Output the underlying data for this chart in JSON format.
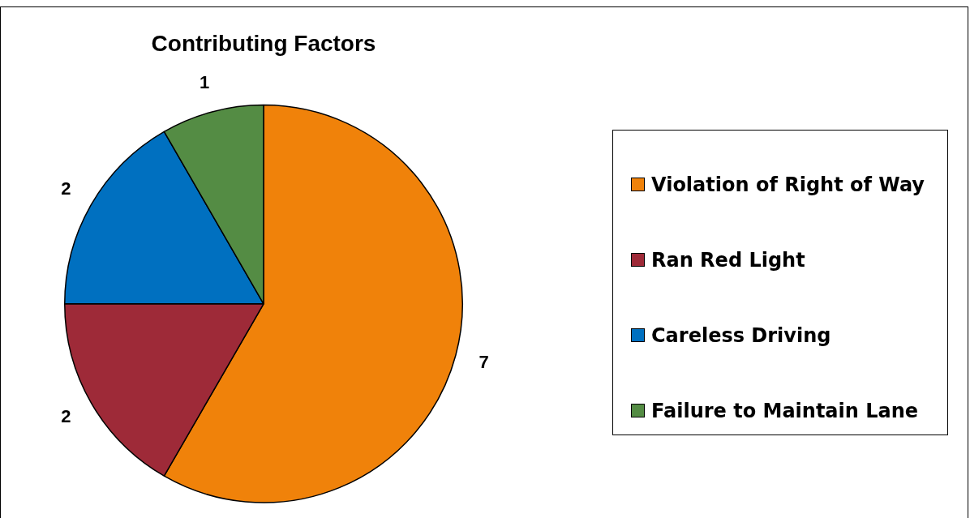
{
  "chart_data": {
    "type": "pie",
    "title": "Contributing Factors",
    "categories": [
      "Violation of Right of Way",
      "Ran Red Light",
      "Careless Driving",
      "Failure to Maintain Lane"
    ],
    "values": [
      7,
      2,
      2,
      1
    ],
    "colors": [
      "#f0820a",
      "#9e2a38",
      "#0070c0",
      "#548c44"
    ],
    "data_labels": true,
    "legend": "right"
  }
}
